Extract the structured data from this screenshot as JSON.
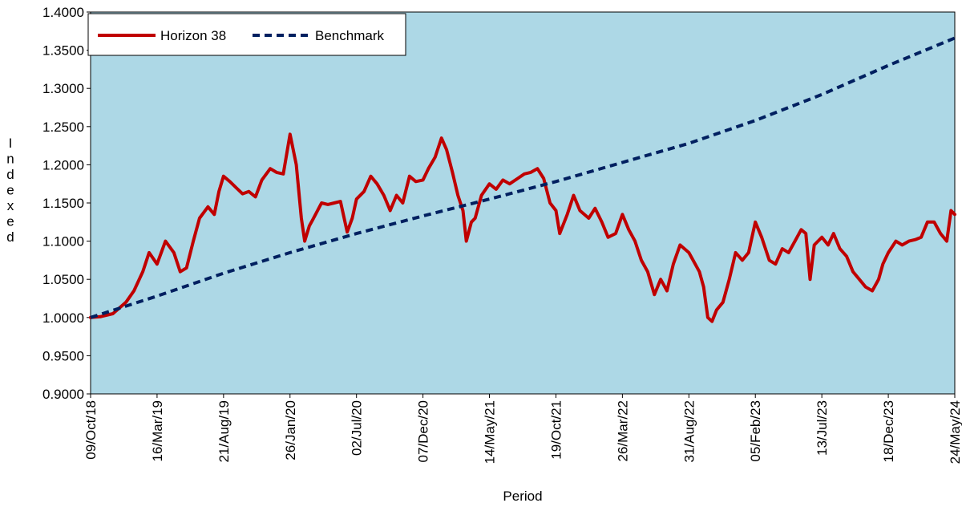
{
  "chart_data": {
    "type": "line",
    "title": "",
    "xlabel": "Period",
    "ylabel": "Indexed",
    "ylim": [
      0.9,
      1.4
    ],
    "yticks": [
      "0.9000",
      "0.9500",
      "1.0000",
      "1.0500",
      "1.1000",
      "1.1500",
      "1.2000",
      "1.2500",
      "1.3000",
      "1.3500",
      "1.4000"
    ],
    "xlim": [
      "2018-10-09",
      "2024-05-24"
    ],
    "xticks": [
      "09/Oct/18",
      "16/Mar/19",
      "21/Aug/19",
      "26/Jan/20",
      "02/Jul/20",
      "07/Dec/20",
      "14/May/21",
      "19/Oct/21",
      "26/Mar/22",
      "31/Aug/22",
      "05/Feb/23",
      "13/Jul/23",
      "18/Dec/23",
      "24/May/24"
    ],
    "xtick_dates": [
      "2018-10-09",
      "2019-03-16",
      "2019-08-21",
      "2020-01-26",
      "2020-07-02",
      "2020-12-07",
      "2021-05-14",
      "2021-10-19",
      "2022-03-26",
      "2022-08-31",
      "2023-02-05",
      "2023-07-13",
      "2023-12-18",
      "2024-05-24"
    ],
    "legend_position": "top-left",
    "plot_background": "#add8e6",
    "series": [
      {
        "name": "Horizon 38",
        "color": "#c00000",
        "style": "solid",
        "x": [
          "2018-10-09",
          "2018-11-01",
          "2018-12-01",
          "2019-01-01",
          "2019-01-20",
          "2019-02-10",
          "2019-02-25",
          "2019-03-16",
          "2019-04-05",
          "2019-04-25",
          "2019-05-10",
          "2019-05-25",
          "2019-06-10",
          "2019-06-25",
          "2019-07-15",
          "2019-07-30",
          "2019-08-10",
          "2019-08-21",
          "2019-09-05",
          "2019-09-20",
          "2019-10-05",
          "2019-10-20",
          "2019-11-05",
          "2019-11-20",
          "2019-12-10",
          "2019-12-25",
          "2020-01-10",
          "2020-01-26",
          "2020-02-10",
          "2020-02-22",
          "2020-03-01",
          "2020-03-12",
          "2020-03-20",
          "2020-04-10",
          "2020-04-25",
          "2020-05-10",
          "2020-05-25",
          "2020-06-10",
          "2020-06-22",
          "2020-07-02",
          "2020-07-20",
          "2020-08-05",
          "2020-08-20",
          "2020-09-05",
          "2020-09-20",
          "2020-10-05",
          "2020-10-20",
          "2020-11-05",
          "2020-11-20",
          "2020-12-07",
          "2020-12-20",
          "2021-01-05",
          "2021-01-20",
          "2021-02-01",
          "2021-02-15",
          "2021-02-28",
          "2021-03-12",
          "2021-03-20",
          "2021-04-01",
          "2021-04-10",
          "2021-04-25",
          "2021-05-14",
          "2021-05-30",
          "2021-06-15",
          "2021-07-01",
          "2021-07-20",
          "2021-08-05",
          "2021-08-20",
          "2021-09-05",
          "2021-09-20",
          "2021-10-05",
          "2021-10-19",
          "2021-10-28",
          "2021-11-15",
          "2021-11-30",
          "2021-12-15",
          "2022-01-05",
          "2022-01-20",
          "2022-02-05",
          "2022-02-20",
          "2022-03-10",
          "2022-03-26",
          "2022-04-10",
          "2022-04-25",
          "2022-05-10",
          "2022-05-25",
          "2022-06-10",
          "2022-06-25",
          "2022-07-10",
          "2022-07-25",
          "2022-08-10",
          "2022-08-31",
          "2022-09-15",
          "2022-09-25",
          "2022-10-05",
          "2022-10-15",
          "2022-10-25",
          "2022-11-05",
          "2022-11-20",
          "2022-12-05",
          "2022-12-20",
          "2023-01-05",
          "2023-01-20",
          "2023-02-05",
          "2023-02-20",
          "2023-03-10",
          "2023-03-25",
          "2023-04-10",
          "2023-04-25",
          "2023-05-10",
          "2023-05-25",
          "2023-06-05",
          "2023-06-15",
          "2023-06-25",
          "2023-07-13",
          "2023-07-28",
          "2023-08-10",
          "2023-08-25",
          "2023-09-10",
          "2023-09-25",
          "2023-10-10",
          "2023-10-25",
          "2023-11-10",
          "2023-11-25",
          "2023-12-05",
          "2023-12-18",
          "2024-01-05",
          "2024-01-20",
          "2024-02-05",
          "2024-02-20",
          "2024-03-05",
          "2024-03-20",
          "2024-04-05",
          "2024-04-20",
          "2024-05-05",
          "2024-05-15",
          "2024-05-24"
        ],
        "values": [
          1.0,
          1.001,
          1.005,
          1.02,
          1.035,
          1.06,
          1.085,
          1.07,
          1.1,
          1.085,
          1.06,
          1.065,
          1.1,
          1.13,
          1.145,
          1.135,
          1.165,
          1.185,
          1.178,
          1.17,
          1.162,
          1.165,
          1.158,
          1.18,
          1.195,
          1.19,
          1.188,
          1.24,
          1.2,
          1.13,
          1.1,
          1.12,
          1.128,
          1.15,
          1.148,
          1.15,
          1.152,
          1.112,
          1.13,
          1.155,
          1.165,
          1.185,
          1.175,
          1.16,
          1.14,
          1.16,
          1.15,
          1.185,
          1.178,
          1.18,
          1.195,
          1.21,
          1.235,
          1.22,
          1.19,
          1.16,
          1.14,
          1.1,
          1.125,
          1.13,
          1.16,
          1.175,
          1.168,
          1.18,
          1.175,
          1.182,
          1.188,
          1.19,
          1.195,
          1.182,
          1.15,
          1.14,
          1.11,
          1.135,
          1.16,
          1.14,
          1.13,
          1.143,
          1.125,
          1.105,
          1.11,
          1.135,
          1.115,
          1.1,
          1.075,
          1.06,
          1.03,
          1.05,
          1.035,
          1.07,
          1.095,
          1.085,
          1.07,
          1.06,
          1.04,
          1.0,
          0.995,
          1.01,
          1.02,
          1.05,
          1.085,
          1.075,
          1.085,
          1.125,
          1.105,
          1.075,
          1.07,
          1.09,
          1.085,
          1.1,
          1.115,
          1.11,
          1.05,
          1.095,
          1.105,
          1.095,
          1.11,
          1.09,
          1.08,
          1.06,
          1.05,
          1.04,
          1.035,
          1.05,
          1.07,
          1.085,
          1.1,
          1.095,
          1.1,
          1.102,
          1.105,
          1.125,
          1.125,
          1.11,
          1.1,
          1.14,
          1.135
        ]
      },
      {
        "name": "Benchmark",
        "color": "#002060",
        "style": "dashed",
        "x": [
          "2018-10-09",
          "2019-03-16",
          "2019-08-21",
          "2020-01-26",
          "2020-07-02",
          "2020-12-07",
          "2021-05-14",
          "2021-10-19",
          "2022-03-26",
          "2022-08-31",
          "2023-02-05",
          "2023-07-13",
          "2023-12-18",
          "2024-05-24"
        ],
        "values": [
          1.0,
          1.028,
          1.058,
          1.085,
          1.11,
          1.133,
          1.155,
          1.178,
          1.203,
          1.228,
          1.258,
          1.292,
          1.33,
          1.366
        ]
      }
    ]
  }
}
